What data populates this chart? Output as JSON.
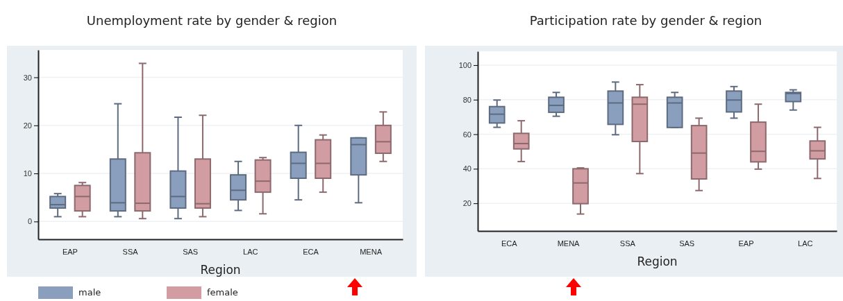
{
  "chart_data": [
    {
      "type": "box",
      "title": "Unemployment rate by gender & region",
      "xlabel": "Region",
      "categories": [
        "EAP",
        "SSA",
        "SAS",
        "LAC",
        "ECA",
        "MENA"
      ],
      "ylim": [
        -3.7,
        35.7
      ],
      "yticks": [
        0,
        10,
        20,
        30
      ],
      "grid": "y",
      "legend": "bottom left",
      "series": [
        {
          "name": "male",
          "color": "#8a9fbd",
          "boxes": [
            {
              "low": 1,
              "q1": 2.8,
              "median": 3.5,
              "q3": 5.2,
              "high": 5.8
            },
            {
              "low": 1,
              "q1": 2.2,
              "median": 3.9,
              "q3": 13,
              "high": 24.5
            },
            {
              "low": 0.6,
              "q1": 2.8,
              "median": 5.2,
              "q3": 10.5,
              "high": 21.7
            },
            {
              "low": 2.3,
              "q1": 4.5,
              "median": 6.5,
              "q3": 9.7,
              "high": 12.5
            },
            {
              "low": 4.5,
              "q1": 9,
              "median": 12.1,
              "q3": 14.4,
              "high": 20
            },
            {
              "low": 3.9,
              "q1": 9.7,
              "median": 16,
              "q3": 17.4,
              "high": 17.4
            }
          ]
        },
        {
          "name": "female",
          "color": "#d19ca2",
          "boxes": [
            {
              "low": 1,
              "q1": 2.2,
              "median": 5.2,
              "q3": 7.5,
              "high": 8.1
            },
            {
              "low": 0.6,
              "q1": 2.2,
              "median": 3.8,
              "q3": 14.3,
              "high": 32.9
            },
            {
              "low": 1,
              "q1": 2.8,
              "median": 3.7,
              "q3": 13,
              "high": 22.1
            },
            {
              "low": 1.6,
              "q1": 6.1,
              "median": 8.4,
              "q3": 12.8,
              "high": 13.3
            },
            {
              "low": 6.1,
              "q1": 9,
              "median": 12.1,
              "q3": 17,
              "high": 18
            },
            {
              "low": 12.5,
              "q1": 14.2,
              "median": 16.6,
              "q3": 20,
              "high": 22.8
            }
          ]
        }
      ]
    },
    {
      "type": "box",
      "title": "Participation rate by gender & region",
      "xlabel": "Region",
      "categories": [
        "ECA",
        "MENA",
        "SSA",
        "SAS",
        "EAP",
        "LAC"
      ],
      "ylim": [
        4,
        108
      ],
      "yticks": [
        20,
        40,
        60,
        80,
        100
      ],
      "grid": "y",
      "series": [
        {
          "color": "#8a9fbd",
          "boxes": [
            {
              "low": 64,
              "q1": 66.5,
              "median": 71.6,
              "q3": 76,
              "high": 79.8
            },
            {
              "low": 70.4,
              "q1": 72.7,
              "median": 76.7,
              "q3": 81.4,
              "high": 84.2
            },
            {
              "low": 59.7,
              "q1": 65.7,
              "median": 78.1,
              "q3": 85,
              "high": 90.2
            },
            {
              "low": 63.9,
              "q1": 63.9,
              "median": 78.1,
              "q3": 81.4,
              "high": 84.2
            },
            {
              "low": 69.3,
              "q1": 72.9,
              "median": 79.8,
              "q3": 85,
              "high": 87.6
            },
            {
              "low": 74,
              "q1": 78.9,
              "median": 83.6,
              "q3": 84.2,
              "high": 85.7
            }
          ]
        },
        {
          "color": "#d19ca2",
          "boxes": [
            {
              "low": 44.2,
              "q1": 51.5,
              "median": 54.6,
              "q3": 60.5,
              "high": 67.8
            },
            {
              "low": 13.8,
              "q1": 19.8,
              "median": 31.8,
              "q3": 40,
              "high": 40.5
            },
            {
              "low": 37.2,
              "q1": 55.8,
              "median": 77.4,
              "q3": 81.4,
              "high": 88.7
            },
            {
              "low": 27.4,
              "q1": 34.1,
              "median": 49.1,
              "q3": 65,
              "high": 69.3
            },
            {
              "low": 39.8,
              "q1": 44,
              "median": 50.1,
              "q3": 67,
              "high": 77.4
            },
            {
              "low": 34.4,
              "q1": 45.7,
              "median": 50.4,
              "q3": 56.1,
              "high": 64
            }
          ]
        }
      ]
    }
  ]
}
